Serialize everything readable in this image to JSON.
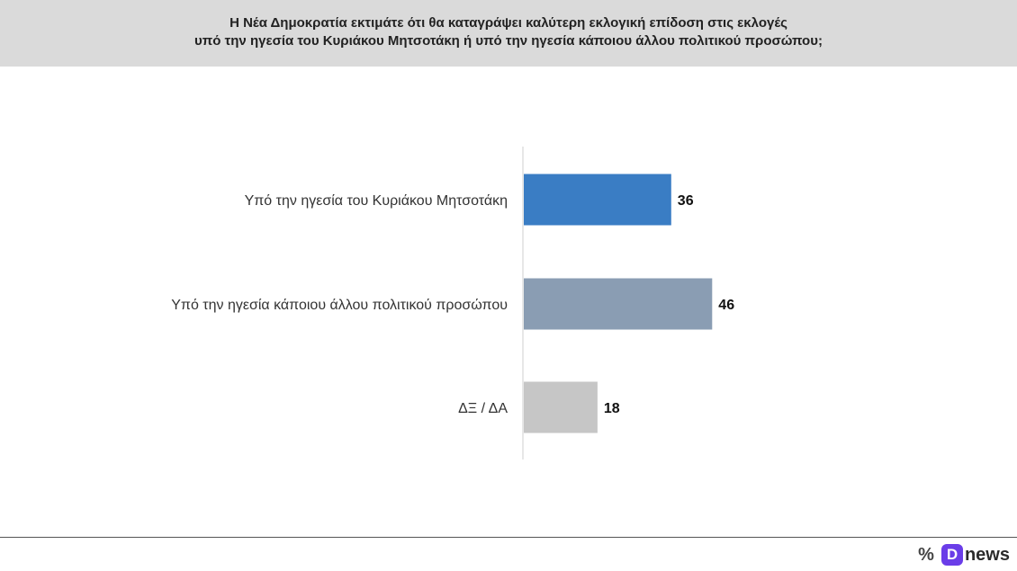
{
  "chart_data": {
    "type": "bar",
    "orientation": "horizontal",
    "title": [
      "Η Νέα Δημοκρατία εκτιμάτε ότι θα καταγράψει καλύτερη εκλογική επίδοση στις εκλογές",
      "υπό την ηγεσία του Κυριάκου Μητσοτάκη ή υπό την ηγεσία κάποιου άλλου πολιτικού προσώπου;"
    ],
    "categories": [
      "Υπό την ηγεσία του Κυριάκου Μητσοτάκη",
      "Υπό την ηγεσία κάποιου άλλου πολιτικού προσώπου",
      "ΔΞ / ΔΑ"
    ],
    "values": [
      36,
      46,
      18
    ],
    "colors": [
      "#3a7dc4",
      "#8a9db3",
      "#c6c6c6"
    ],
    "xlim": [
      0,
      100
    ],
    "grid": false,
    "legend": "none"
  },
  "brand": {
    "percent_icon": "percent-icon",
    "badge_letter": "D",
    "word": "news",
    "badge_color": "#6a3de8"
  }
}
